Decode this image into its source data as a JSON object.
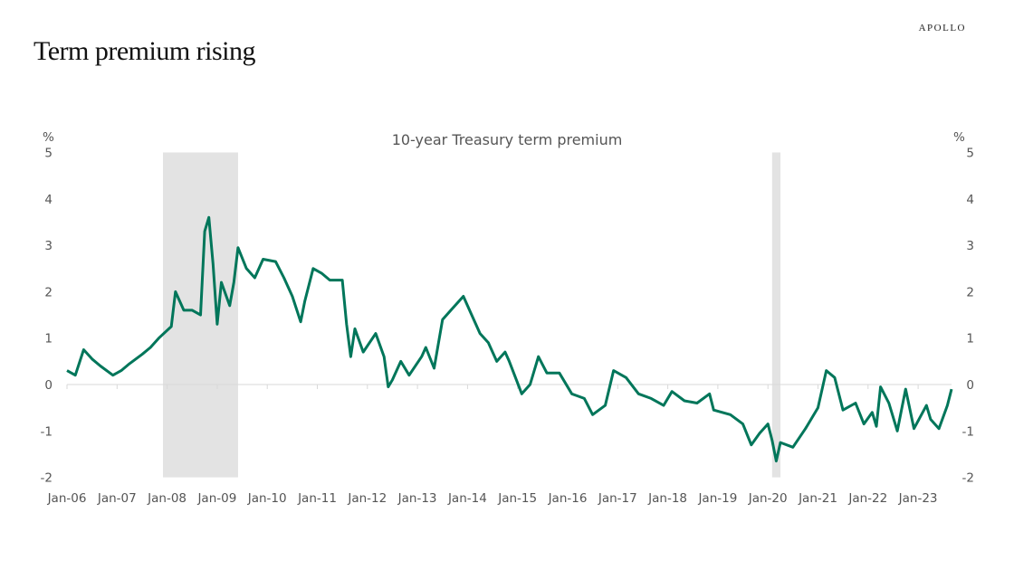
{
  "header": {
    "brand": "APOLLO",
    "title": "Term premium rising"
  },
  "colors": {
    "line": "#00765A",
    "recession": "#E3E3E3",
    "axis": "#D9D9D9",
    "text": "#555555"
  },
  "chart_data": {
    "type": "line",
    "title": "10-year Treasury term premium",
    "ylabel_left": "%",
    "ylabel_right": "%",
    "ylim": [
      -2,
      5
    ],
    "yticks": [
      5,
      4,
      3,
      2,
      1,
      0,
      -1,
      -2
    ],
    "xlim": [
      "2006-01",
      "2023-09"
    ],
    "xticks": [
      "Jan-06",
      "Jan-07",
      "Jan-08",
      "Jan-09",
      "Jan-10",
      "Jan-11",
      "Jan-12",
      "Jan-13",
      "Jan-14",
      "Jan-15",
      "Jan-16",
      "Jan-17",
      "Jan-18",
      "Jan-19",
      "Jan-20",
      "Jan-21",
      "Jan-22",
      "Jan-23"
    ],
    "grid": false,
    "recessions": [
      {
        "start": "2007-12",
        "end": "2009-06"
      },
      {
        "start": "2020-02",
        "end": "2020-04"
      }
    ],
    "series": [
      {
        "x": [
          "2006-01",
          "2006-03",
          "2006-05",
          "2006-07",
          "2006-09",
          "2006-12",
          "2007-02",
          "2007-04",
          "2007-07",
          "2007-09",
          "2007-11",
          "2008-02",
          "2008-03",
          "2008-05",
          "2008-07",
          "2008-09",
          "2008-10",
          "2008-11",
          "2008-12",
          "2009-01",
          "2009-02",
          "2009-04",
          "2009-05",
          "2009-06",
          "2009-08",
          "2009-10",
          "2009-12",
          "2010-03",
          "2010-05",
          "2010-07",
          "2010-09",
          "2010-10",
          "2010-12",
          "2011-02",
          "2011-04",
          "2011-07",
          "2011-08",
          "2011-09",
          "2011-10",
          "2011-12",
          "2012-03",
          "2012-05",
          "2012-06",
          "2012-07",
          "2012-09",
          "2012-11",
          "2013-02",
          "2013-03",
          "2013-05",
          "2013-07",
          "2013-09",
          "2013-12",
          "2014-02",
          "2014-04",
          "2014-06",
          "2014-08",
          "2014-10",
          "2014-11",
          "2015-02",
          "2015-04",
          "2015-06",
          "2015-08",
          "2015-11",
          "2016-02",
          "2016-05",
          "2016-07",
          "2016-10",
          "2016-12",
          "2017-03",
          "2017-06",
          "2017-09",
          "2017-12",
          "2018-02",
          "2018-05",
          "2018-08",
          "2018-11",
          "2018-12",
          "2019-04",
          "2019-07",
          "2019-09",
          "2019-11",
          "2020-01",
          "2020-02",
          "2020-03",
          "2020-04",
          "2020-07",
          "2020-10",
          "2021-01",
          "2021-03",
          "2021-05",
          "2021-07",
          "2021-10",
          "2021-12",
          "2022-02",
          "2022-03",
          "2022-04",
          "2022-06",
          "2022-08",
          "2022-10",
          "2022-12",
          "2023-03",
          "2023-04",
          "2023-06",
          "2023-08",
          "2023-09"
        ],
        "y": [
          0.3,
          0.2,
          0.75,
          0.55,
          0.4,
          0.2,
          0.3,
          0.45,
          0.65,
          0.8,
          1.0,
          1.25,
          2.0,
          1.6,
          1.6,
          1.5,
          3.3,
          3.6,
          2.6,
          1.3,
          2.2,
          1.7,
          2.2,
          2.95,
          2.5,
          2.3,
          2.7,
          2.65,
          2.3,
          1.9,
          1.35,
          1.8,
          2.5,
          2.4,
          2.25,
          2.25,
          1.3,
          0.6,
          1.2,
          0.7,
          1.1,
          0.6,
          -0.05,
          0.1,
          0.5,
          0.2,
          0.6,
          0.8,
          0.35,
          1.4,
          1.6,
          1.9,
          1.5,
          1.1,
          0.9,
          0.5,
          0.7,
          0.5,
          -0.2,
          0.0,
          0.6,
          0.25,
          0.25,
          -0.2,
          -0.3,
          -0.65,
          -0.45,
          0.3,
          0.15,
          -0.2,
          -0.3,
          -0.45,
          -0.15,
          -0.35,
          -0.4,
          -0.2,
          -0.55,
          -0.65,
          -0.85,
          -1.3,
          -1.05,
          -0.85,
          -1.2,
          -1.65,
          -1.25,
          -1.35,
          -0.95,
          -0.5,
          0.3,
          0.15,
          -0.55,
          -0.4,
          -0.85,
          -0.6,
          -0.9,
          -0.05,
          -0.4,
          -1.0,
          -0.1,
          -0.95,
          -0.45,
          -0.75,
          -0.95,
          -0.45,
          -0.1
        ]
      }
    ]
  }
}
